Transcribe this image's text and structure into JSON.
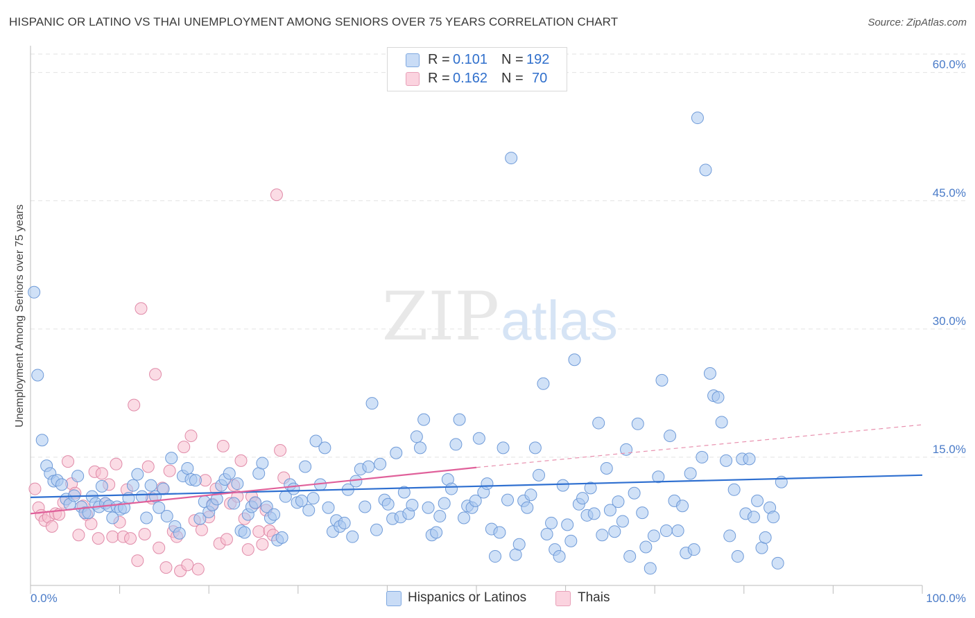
{
  "title": "HISPANIC OR LATINO VS THAI UNEMPLOYMENT AMONG SENIORS OVER 75 YEARS CORRELATION CHART",
  "source": "Source: ZipAtlas.com",
  "watermark": {
    "zip": "ZIP",
    "atlas": "atlas"
  },
  "legend": {
    "rows": [
      {
        "r_label": "R =",
        "r_value": "0.101",
        "n_label": "N =",
        "n_value": "192",
        "color": "#aac8f0",
        "border": "#7ea8e0"
      },
      {
        "r_label": "R =",
        "r_value": "0.162",
        "n_label": "N =",
        "n_value": "70",
        "color": "#f8c0d0",
        "border": "#e8a0b8"
      }
    ]
  },
  "bottom_legend": [
    {
      "label": "Hispanics or Latinos",
      "color": "#aac8f0",
      "border": "#7ea8e0"
    },
    {
      "label": "Thais",
      "color": "#f8c0d0",
      "border": "#e8a0b8"
    }
  ],
  "chart_data": {
    "type": "scatter",
    "title": "HISPANIC OR LATINO VS THAI UNEMPLOYMENT AMONG SENIORS OVER 75 YEARS CORRELATION CHART",
    "xlabel": "",
    "ylabel": "Unemployment Among Seniors over 75 years",
    "xlim": [
      0,
      100
    ],
    "ylim": [
      0,
      62
    ],
    "x_tick_labels": [
      "0.0%",
      "100.0%"
    ],
    "y_ticks": [
      15,
      30,
      45,
      60
    ],
    "y_tick_labels": [
      "15.0%",
      "30.0%",
      "45.0%",
      "60.0%"
    ],
    "grid": true,
    "legend_position": "top-center",
    "series": [
      {
        "name": "Hispanics or Latinos",
        "color": "#aac8f0",
        "stroke": "#6e9ad8",
        "points": [
          [
            0.4,
            34.3
          ],
          [
            0.8,
            24.6
          ],
          [
            1.3,
            17.0
          ],
          [
            1.8,
            14.0
          ],
          [
            2.2,
            13.1
          ],
          [
            2.6,
            12.2
          ],
          [
            3.0,
            12.3
          ],
          [
            3.5,
            11.8
          ],
          [
            4.0,
            10.1
          ],
          [
            4.4,
            9.5
          ],
          [
            4.9,
            10.5
          ],
          [
            5.3,
            12.8
          ],
          [
            5.7,
            9.2
          ],
          [
            6.1,
            8.5
          ],
          [
            6.5,
            8.5
          ],
          [
            6.9,
            10.4
          ],
          [
            7.3,
            9.6
          ],
          [
            7.7,
            9.2
          ],
          [
            8.0,
            11.6
          ],
          [
            8.4,
            9.6
          ],
          [
            8.8,
            9.3
          ],
          [
            9.2,
            7.9
          ],
          [
            9.7,
            9.2
          ],
          [
            10.1,
            8.9
          ],
          [
            10.5,
            9.1
          ],
          [
            11.0,
            10.2
          ],
          [
            11.5,
            11.7
          ],
          [
            12.0,
            13.0
          ],
          [
            12.5,
            10.4
          ],
          [
            13.0,
            7.9
          ],
          [
            13.5,
            11.7
          ],
          [
            14.0,
            10.4
          ],
          [
            14.4,
            9.1
          ],
          [
            14.9,
            11.3
          ],
          [
            15.3,
            8.1
          ],
          [
            15.8,
            14.9
          ],
          [
            16.2,
            6.9
          ],
          [
            16.7,
            6.1
          ],
          [
            17.1,
            12.8
          ],
          [
            17.6,
            13.7
          ],
          [
            18.0,
            12.4
          ],
          [
            18.5,
            12.3
          ],
          [
            19.0,
            7.8
          ],
          [
            19.5,
            9.8
          ],
          [
            20.0,
            8.6
          ],
          [
            20.4,
            9.4
          ],
          [
            20.9,
            10.1
          ],
          [
            21.4,
            11.7
          ],
          [
            21.8,
            12.4
          ],
          [
            22.3,
            13.1
          ],
          [
            22.8,
            9.6
          ],
          [
            23.2,
            11.9
          ],
          [
            23.6,
            6.4
          ],
          [
            24.0,
            6.2
          ],
          [
            24.4,
            8.3
          ],
          [
            24.8,
            9.2
          ],
          [
            25.2,
            9.7
          ],
          [
            25.6,
            13.1
          ],
          [
            26.0,
            14.3
          ],
          [
            26.5,
            9.2
          ],
          [
            26.9,
            7.9
          ],
          [
            27.3,
            8.3
          ],
          [
            27.7,
            5.3
          ],
          [
            28.2,
            5.6
          ],
          [
            28.6,
            10.4
          ],
          [
            29.1,
            11.8
          ],
          [
            29.5,
            11.3
          ],
          [
            29.9,
            9.7
          ],
          [
            30.4,
            9.9
          ],
          [
            30.8,
            13.9
          ],
          [
            31.2,
            8.8
          ],
          [
            31.7,
            10.2
          ],
          [
            32.0,
            16.9
          ],
          [
            32.5,
            11.8
          ],
          [
            33.0,
            16.1
          ],
          [
            33.4,
            9.1
          ],
          [
            33.9,
            6.3
          ],
          [
            34.3,
            7.6
          ],
          [
            34.7,
            6.9
          ],
          [
            35.2,
            7.3
          ],
          [
            35.6,
            11.2
          ],
          [
            36.1,
            5.7
          ],
          [
            36.5,
            12.2
          ],
          [
            37.0,
            13.6
          ],
          [
            37.5,
            9.2
          ],
          [
            37.9,
            13.9
          ],
          [
            38.3,
            21.3
          ],
          [
            38.8,
            6.5
          ],
          [
            39.2,
            14.2
          ],
          [
            39.7,
            10.0
          ],
          [
            40.1,
            9.5
          ],
          [
            40.6,
            7.8
          ],
          [
            41.0,
            15.5
          ],
          [
            41.5,
            8.0
          ],
          [
            41.9,
            10.9
          ],
          [
            42.4,
            8.4
          ],
          [
            42.8,
            9.4
          ],
          [
            43.3,
            17.4
          ],
          [
            43.7,
            16.1
          ],
          [
            44.1,
            19.4
          ],
          [
            44.6,
            9.1
          ],
          [
            45.0,
            5.9
          ],
          [
            45.5,
            6.2
          ],
          [
            45.9,
            8.1
          ],
          [
            46.4,
            9.6
          ],
          [
            46.8,
            12.4
          ],
          [
            47.2,
            11.3
          ],
          [
            47.7,
            16.5
          ],
          [
            48.1,
            19.4
          ],
          [
            48.6,
            7.9
          ],
          [
            49.0,
            9.3
          ],
          [
            49.5,
            9.1
          ],
          [
            49.9,
            9.9
          ],
          [
            50.3,
            17.2
          ],
          [
            50.8,
            10.9
          ],
          [
            51.2,
            11.9
          ],
          [
            51.7,
            6.6
          ],
          [
            52.1,
            3.4
          ],
          [
            52.6,
            6.2
          ],
          [
            53.0,
            16.1
          ],
          [
            53.5,
            10.0
          ],
          [
            53.9,
            50.0
          ],
          [
            54.4,
            3.6
          ],
          [
            54.8,
            4.8
          ],
          [
            55.3,
            9.9
          ],
          [
            55.7,
            9.1
          ],
          [
            56.1,
            10.6
          ],
          [
            56.6,
            16.1
          ],
          [
            57.0,
            12.9
          ],
          [
            57.5,
            23.6
          ],
          [
            57.9,
            6.0
          ],
          [
            58.4,
            7.3
          ],
          [
            58.8,
            4.2
          ],
          [
            59.3,
            3.4
          ],
          [
            59.7,
            11.7
          ],
          [
            60.2,
            7.1
          ],
          [
            60.6,
            5.2
          ],
          [
            61.0,
            26.4
          ],
          [
            61.5,
            9.5
          ],
          [
            61.9,
            10.2
          ],
          [
            62.4,
            8.2
          ],
          [
            62.8,
            11.4
          ],
          [
            63.2,
            8.4
          ],
          [
            63.7,
            19.0
          ],
          [
            64.1,
            5.9
          ],
          [
            64.6,
            13.7
          ],
          [
            65.0,
            8.8
          ],
          [
            65.5,
            6.3
          ],
          [
            65.9,
            9.8
          ],
          [
            66.4,
            7.5
          ],
          [
            66.8,
            15.9
          ],
          [
            67.2,
            3.4
          ],
          [
            67.7,
            10.8
          ],
          [
            68.1,
            18.9
          ],
          [
            68.6,
            8.5
          ],
          [
            69.0,
            4.5
          ],
          [
            69.5,
            2.0
          ],
          [
            69.9,
            5.8
          ],
          [
            70.4,
            12.7
          ],
          [
            70.8,
            24.0
          ],
          [
            71.3,
            6.4
          ],
          [
            71.7,
            17.5
          ],
          [
            72.2,
            9.9
          ],
          [
            72.6,
            6.4
          ],
          [
            73.1,
            9.3
          ],
          [
            73.5,
            3.8
          ],
          [
            74.0,
            13.1
          ],
          [
            74.4,
            4.2
          ],
          [
            74.8,
            54.7
          ],
          [
            75.3,
            15.0
          ],
          [
            75.7,
            48.6
          ],
          [
            76.2,
            24.8
          ],
          [
            76.6,
            22.2
          ],
          [
            77.1,
            22.0
          ],
          [
            77.5,
            19.1
          ],
          [
            78.0,
            14.6
          ],
          [
            78.4,
            5.8
          ],
          [
            78.9,
            11.2
          ],
          [
            79.3,
            3.4
          ],
          [
            79.8,
            14.8
          ],
          [
            80.2,
            8.4
          ],
          [
            80.6,
            14.8
          ],
          [
            81.1,
            8.0
          ],
          [
            81.5,
            9.9
          ],
          [
            82.0,
            4.4
          ],
          [
            82.4,
            5.6
          ],
          [
            82.9,
            9.1
          ],
          [
            83.3,
            8.0
          ],
          [
            83.8,
            2.6
          ],
          [
            84.2,
            12.1
          ]
        ]
      },
      {
        "name": "Thais",
        "color": "#f8c0d0",
        "stroke": "#e08aa8",
        "points": [
          [
            0.5,
            11.3
          ],
          [
            0.9,
            9.1
          ],
          [
            1.2,
            8.2
          ],
          [
            1.6,
            7.6
          ],
          [
            2.0,
            8.0
          ],
          [
            2.4,
            6.9
          ],
          [
            2.8,
            8.4
          ],
          [
            3.2,
            8.3
          ],
          [
            3.7,
            9.7
          ],
          [
            4.2,
            14.5
          ],
          [
            4.6,
            11.9
          ],
          [
            5.0,
            10.8
          ],
          [
            5.4,
            5.9
          ],
          [
            5.9,
            9.3
          ],
          [
            6.3,
            8.3
          ],
          [
            6.8,
            7.2
          ],
          [
            7.2,
            13.3
          ],
          [
            7.6,
            5.5
          ],
          [
            8.0,
            13.1
          ],
          [
            8.4,
            9.6
          ],
          [
            8.8,
            11.8
          ],
          [
            9.2,
            5.7
          ],
          [
            9.6,
            14.2
          ],
          [
            10.0,
            7.4
          ],
          [
            10.4,
            5.7
          ],
          [
            10.8,
            11.2
          ],
          [
            11.2,
            5.5
          ],
          [
            11.6,
            21.1
          ],
          [
            12.0,
            2.9
          ],
          [
            12.4,
            32.4
          ],
          [
            12.8,
            6.0
          ],
          [
            13.2,
            13.9
          ],
          [
            13.6,
            10.2
          ],
          [
            14.0,
            24.7
          ],
          [
            14.4,
            4.4
          ],
          [
            14.8,
            11.4
          ],
          [
            15.2,
            2.1
          ],
          [
            15.6,
            13.4
          ],
          [
            16.0,
            6.3
          ],
          [
            16.4,
            5.7
          ],
          [
            16.8,
            1.7
          ],
          [
            17.2,
            16.2
          ],
          [
            17.6,
            2.4
          ],
          [
            18.0,
            17.5
          ],
          [
            18.4,
            7.6
          ],
          [
            18.8,
            1.9
          ],
          [
            19.2,
            6.5
          ],
          [
            19.6,
            12.3
          ],
          [
            20.0,
            8.0
          ],
          [
            20.4,
            9.5
          ],
          [
            20.8,
            11.3
          ],
          [
            21.2,
            4.9
          ],
          [
            21.6,
            16.3
          ],
          [
            22.0,
            5.4
          ],
          [
            22.4,
            9.6
          ],
          [
            22.8,
            11.7
          ],
          [
            23.2,
            10.4
          ],
          [
            23.6,
            14.6
          ],
          [
            24.0,
            7.8
          ],
          [
            24.4,
            4.2
          ],
          [
            24.8,
            10.4
          ],
          [
            25.2,
            9.6
          ],
          [
            25.6,
            6.3
          ],
          [
            26.0,
            4.8
          ],
          [
            26.4,
            8.8
          ],
          [
            26.8,
            6.4
          ],
          [
            27.2,
            5.9
          ],
          [
            27.6,
            45.7
          ],
          [
            28.0,
            15.8
          ],
          [
            28.4,
            12.6
          ]
        ]
      }
    ],
    "trend_lines": [
      {
        "series": "Hispanics or Latinos",
        "x": [
          0,
          100
        ],
        "y": [
          10.3,
          12.9
        ]
      },
      {
        "series": "Thais",
        "x": [
          0,
          50
        ],
        "y": [
          8.4,
          13.8
        ],
        "dashed_extension_to": [
          100,
          18.8
        ]
      }
    ]
  }
}
